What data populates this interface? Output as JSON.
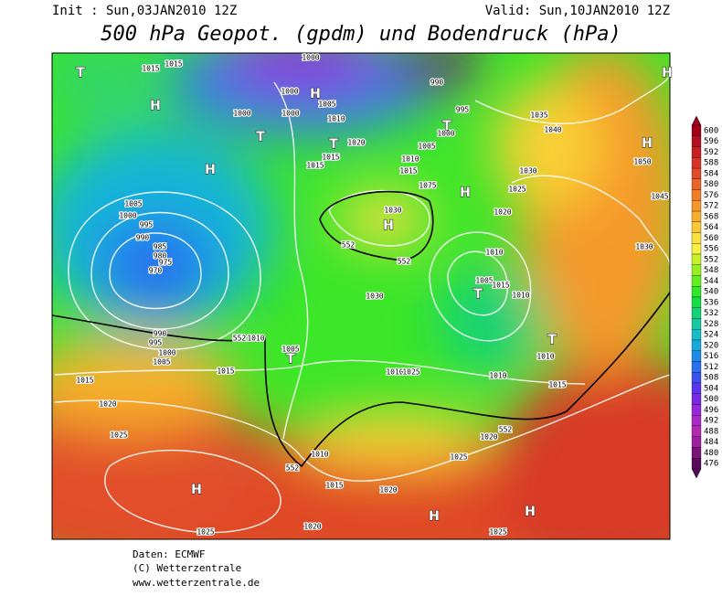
{
  "header": {
    "init": "Init : Sun,03JAN2010 12Z",
    "valid": "Valid: Sun,10JAN2010 12Z",
    "title": "500 hPa Geopot. (gpdm) und Bodendruck (hPa)"
  },
  "colorbar": {
    "levels": [
      600,
      596,
      592,
      588,
      584,
      580,
      576,
      572,
      568,
      564,
      560,
      556,
      552,
      548,
      544,
      540,
      536,
      532,
      528,
      524,
      520,
      516,
      512,
      508,
      504,
      500,
      496,
      492,
      488,
      484,
      480,
      476
    ],
    "colors": [
      "#a00018",
      "#b40f1e",
      "#c81e24",
      "#d83228",
      "#e24a28",
      "#ea6428",
      "#f07c28",
      "#f59628",
      "#f8ae2c",
      "#fac832",
      "#fbe040",
      "#f6f040",
      "#c8f028",
      "#96f01e",
      "#64ee1e",
      "#32e628",
      "#14dc46",
      "#14d278",
      "#14c8a0",
      "#14bec8",
      "#14aadc",
      "#1e8ce6",
      "#2870f0",
      "#3c50f0",
      "#5a32f0",
      "#7828e6",
      "#9628dc",
      "#aa28c8",
      "#b428b4",
      "#a01ea0",
      "#7a1478",
      "#5a0a5a"
    ]
  },
  "map": {
    "labels": [
      "T",
      "1015",
      "1015",
      "H",
      "1000",
      "1000",
      "H",
      "1005",
      "990",
      "1000",
      "1000",
      "T",
      "1010",
      "1020",
      "T",
      "1005",
      "995",
      "1000",
      "T",
      "1035",
      "1040",
      "H",
      "1015",
      "1015",
      "1010",
      "1015",
      "1030",
      "1075",
      "H",
      "1025",
      "H",
      "1050",
      "1045",
      "1005",
      "1000",
      "995",
      "990",
      "985",
      "980",
      "975",
      "970",
      "1030",
      "H",
      "1020",
      "552",
      "1010",
      "552",
      "1030",
      "1005",
      "T",
      "1015",
      "1030",
      "1010",
      "990",
      "995",
      "1000",
      "1005",
      "552",
      "1010",
      "1005",
      "T",
      "1010",
      "T",
      "1015",
      "1015",
      "1010",
      "1025",
      "1010",
      "1015",
      "1020",
      "1025",
      "552",
      "1020",
      "1010",
      "552",
      "1025",
      "H",
      "1015",
      "1020",
      "H",
      "H",
      "1020",
      "1025",
      "1025",
      "H"
    ]
  },
  "footer": [
    "Daten: ECMWF",
    "(C) Wetterzentrale",
    "www.wetterzentrale.de"
  ]
}
